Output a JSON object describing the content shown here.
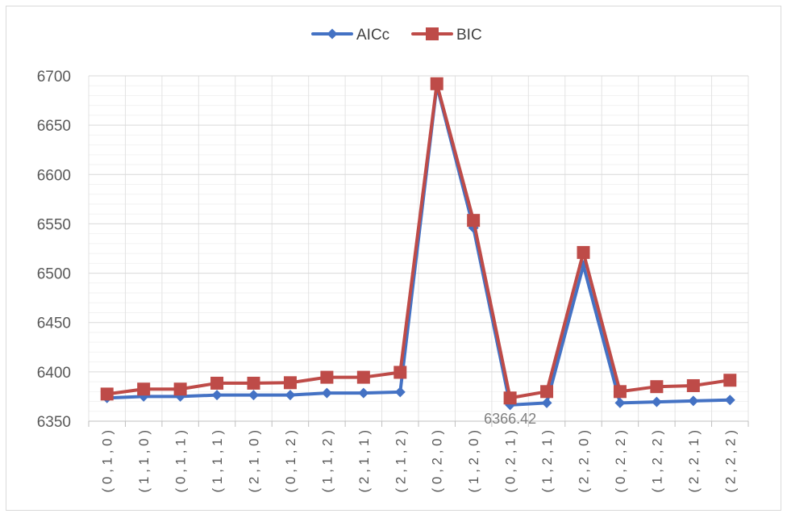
{
  "chart_data": {
    "type": "line",
    "title": "",
    "xlabel": "",
    "ylabel": "",
    "categories": [
      "( 0 , 1 , 0 )",
      "( 1 , 1 , 0 )",
      "( 0 , 1 , 1 )",
      "( 1 , 1 , 1 )",
      "( 2 , 1 , 0 )",
      "( 0 , 1 , 2 )",
      "( 1 , 1 , 2 )",
      "( 2 , 1 , 1 )",
      "( 2 , 1 , 2 )",
      "( 0 , 2 , 0 )",
      "( 1 , 2 , 0 )",
      "( 0 , 2 , 1 )",
      "( 1 , 2 , 1 )",
      "( 2 , 2 , 0 )",
      "( 0 , 2 , 2 )",
      "( 1 , 2 , 2 )",
      "( 2 , 2 , 1 )",
      "( 2 , 2 , 2 )"
    ],
    "ylim": [
      6350,
      6700
    ],
    "yticks": [
      6350,
      6400,
      6450,
      6500,
      6550,
      6600,
      6650,
      6700
    ],
    "grid": true,
    "legend_position": "top",
    "series": [
      {
        "name": "AICc",
        "color": "#4472C4",
        "marker": "diamond",
        "values": [
          6373.5,
          6375,
          6375,
          6376.5,
          6376.5,
          6376.5,
          6378.5,
          6378.5,
          6379.5,
          6690,
          6546,
          6366.42,
          6368.5,
          6508,
          6368.5,
          6369.5,
          6370.5,
          6371.5
        ]
      },
      {
        "name": "BIC",
        "color": "#BE4B48",
        "marker": "square",
        "values": [
          6377.5,
          6382.5,
          6382.5,
          6388.5,
          6388.5,
          6389,
          6394.5,
          6394.5,
          6399.5,
          6692,
          6553.5,
          6373.5,
          6380,
          6521,
          6380,
          6385,
          6386,
          6391.5
        ]
      }
    ],
    "annotations": [
      {
        "series": "AICc",
        "category_index": 11,
        "text": "6366.42"
      }
    ]
  }
}
